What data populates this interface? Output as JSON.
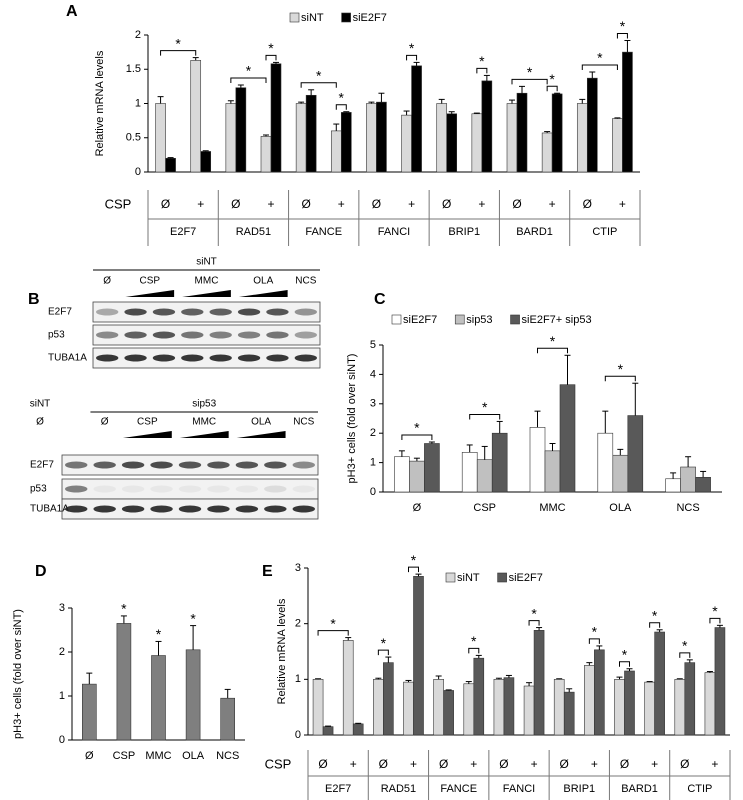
{
  "chart_data": [
    {
      "type": "bar",
      "panel": "A",
      "ylabel": "Relative mRNA levels",
      "row_label": "CSP",
      "categories": [
        "Ø",
        "+",
        "Ø",
        "+",
        "Ø",
        "+",
        "Ø",
        "+",
        "Ø",
        "+",
        "Ø",
        "+",
        "Ø",
        "+"
      ],
      "groups": [
        "E2F7",
        "RAD51",
        "FANCE",
        "FANCI",
        "BRIP1",
        "BARD1",
        "CTIP"
      ],
      "series": [
        {
          "name": "siNT",
          "color": "#d9d9d9",
          "values": [
            1.0,
            1.63,
            1.0,
            0.52,
            1.0,
            0.6,
            1.0,
            0.83,
            1.0,
            0.85,
            1.0,
            0.57,
            1.0,
            0.78
          ],
          "errors": [
            0.1,
            0.04,
            0.04,
            0.02,
            0.02,
            0.1,
            0.02,
            0.06,
            0.06,
            0.01,
            0.05,
            0.02,
            0.06,
            0.01
          ]
        },
        {
          "name": "siE2F7",
          "color": "#000000",
          "values": [
            0.2,
            0.3,
            1.23,
            1.58,
            1.12,
            0.87,
            1.02,
            1.55,
            0.85,
            1.33,
            1.15,
            1.14,
            1.37,
            1.75
          ],
          "errors": [
            0.01,
            0.01,
            0.04,
            0.02,
            0.08,
            0.01,
            0.13,
            0.05,
            0.03,
            0.08,
            0.1,
            0.01,
            0.09,
            0.17
          ]
        }
      ],
      "ylim": [
        0,
        2
      ],
      "yticks": [
        0,
        0.5,
        1,
        1.5,
        2
      ],
      "significance": [
        {
          "text": "*",
          "from": [
            0,
            0
          ],
          "to": [
            0,
            1
          ]
        },
        {
          "text": "*",
          "from": [
            0,
            2
          ],
          "to": [
            0,
            3
          ]
        },
        {
          "text": "*",
          "from": [
            0,
            3
          ],
          "to": [
            1,
            3
          ]
        },
        {
          "text": "*",
          "from": [
            0,
            4
          ],
          "to": [
            0,
            5
          ]
        },
        {
          "text": "*",
          "from": [
            0,
            5
          ],
          "to": [
            1,
            5
          ]
        },
        {
          "text": "*",
          "from": [
            0,
            7
          ],
          "to": [
            1,
            7
          ]
        },
        {
          "text": "*",
          "from": [
            0,
            9
          ],
          "to": [
            1,
            9
          ]
        },
        {
          "text": "*",
          "from": [
            0,
            10
          ],
          "to": [
            0,
            11
          ]
        },
        {
          "text": "*",
          "from": [
            0,
            11
          ],
          "to": [
            1,
            11
          ]
        },
        {
          "text": "*",
          "from": [
            0,
            12
          ],
          "to": [
            0,
            13
          ]
        },
        {
          "text": "*",
          "from": [
            0,
            13
          ],
          "to": [
            1,
            13
          ]
        }
      ]
    },
    {
      "type": "bar",
      "panel": "C",
      "ylabel": "pH3+ cells (fold over siNT)",
      "categories": [
        "Ø",
        "CSP",
        "MMC",
        "OLA",
        "NCS"
      ],
      "series": [
        {
          "name": "siE2F7",
          "color": "#ffffff",
          "values": [
            1.2,
            1.35,
            2.2,
            2.0,
            0.45
          ],
          "errors": [
            0.2,
            0.25,
            0.55,
            0.75,
            0.2
          ]
        },
        {
          "name": "sip53",
          "color": "#c0c0c0",
          "values": [
            1.05,
            1.1,
            1.4,
            1.25,
            0.85
          ],
          "errors": [
            0.1,
            0.45,
            0.25,
            0.2,
            0.35
          ]
        },
        {
          "name": "siE2F7+ sip53",
          "color": "#595959",
          "values": [
            1.65,
            2.0,
            3.65,
            2.6,
            0.5
          ],
          "errors": [
            0.05,
            0.4,
            1.0,
            1.1,
            0.2
          ]
        }
      ],
      "ylim": [
        0,
        5
      ],
      "yticks": [
        0,
        1,
        2,
        3,
        4,
        5
      ],
      "significance": [
        {
          "text": "*",
          "from": [
            0,
            0
          ],
          "to": [
            2,
            0
          ]
        },
        {
          "text": "*",
          "from": [
            0,
            1
          ],
          "to": [
            2,
            1
          ]
        },
        {
          "text": "*",
          "from": [
            0,
            2
          ],
          "to": [
            2,
            2
          ]
        },
        {
          "text": "*",
          "from": [
            0,
            3
          ],
          "to": [
            2,
            3
          ]
        }
      ]
    },
    {
      "type": "bar",
      "panel": "D",
      "ylabel": "pH3+ cells (fold over siNT)",
      "categories": [
        "Ø",
        "CSP",
        "MMC",
        "OLA",
        "NCS"
      ],
      "series": [
        {
          "color": "#7f7f7f",
          "values": [
            1.27,
            2.65,
            1.92,
            2.05,
            0.95
          ],
          "errors": [
            0.25,
            0.17,
            0.32,
            0.55,
            0.2
          ]
        }
      ],
      "ylim": [
        0,
        3
      ],
      "yticks": [
        0,
        1,
        2,
        3
      ],
      "significance": [
        {
          "text": "*",
          "from": [
            0,
            1
          ],
          "to": [
            0,
            1
          ]
        },
        {
          "text": "*",
          "from": [
            0,
            2
          ],
          "to": [
            0,
            2
          ]
        },
        {
          "text": "*",
          "from": [
            0,
            3
          ],
          "to": [
            0,
            3
          ]
        }
      ]
    },
    {
      "type": "bar",
      "panel": "E",
      "ylabel": "Relative mRNA levels",
      "row_label": "CSP",
      "categories": [
        "Ø",
        "+",
        "Ø",
        "+",
        "Ø",
        "+",
        "Ø",
        "+",
        "Ø",
        "+",
        "Ø",
        "+",
        "Ø",
        "+"
      ],
      "groups": [
        "E2F7",
        "RAD51",
        "FANCE",
        "FANCI",
        "BRIP1",
        "BARD1",
        "CTIP"
      ],
      "series": [
        {
          "name": "siNT",
          "color": "#d9d9d9",
          "values": [
            1.0,
            1.7,
            1.0,
            0.95,
            1.0,
            0.92,
            1.0,
            0.88,
            1.0,
            1.25,
            1.0,
            0.95,
            1.0,
            1.12
          ],
          "errors": [
            0.01,
            0.05,
            0.02,
            0.03,
            0.06,
            0.04,
            0.02,
            0.06,
            0.01,
            0.05,
            0.04,
            0.01,
            0.01,
            0.02
          ]
        },
        {
          "name": "siE2F7",
          "color": "#595959",
          "values": [
            0.15,
            0.2,
            1.3,
            2.85,
            0.8,
            1.38,
            1.03,
            1.88,
            0.77,
            1.53,
            1.15,
            1.85,
            1.3,
            1.93
          ],
          "errors": [
            0.01,
            0.01,
            0.1,
            0.04,
            0.01,
            0.05,
            0.04,
            0.05,
            0.06,
            0.07,
            0.04,
            0.04,
            0.05,
            0.04
          ]
        }
      ],
      "ylim": [
        0,
        3
      ],
      "yticks": [
        0,
        1,
        2,
        3
      ],
      "significance": [
        {
          "text": "*",
          "from": [
            0,
            0
          ],
          "to": [
            0,
            1
          ]
        },
        {
          "text": "*",
          "from": [
            0,
            2
          ],
          "to": [
            1,
            2
          ]
        },
        {
          "text": "*",
          "from": [
            0,
            3
          ],
          "to": [
            1,
            3
          ]
        },
        {
          "text": "*",
          "from": [
            0,
            5
          ],
          "to": [
            1,
            5
          ]
        },
        {
          "text": "*",
          "from": [
            0,
            7
          ],
          "to": [
            1,
            7
          ]
        },
        {
          "text": "*",
          "from": [
            0,
            9
          ],
          "to": [
            1,
            9
          ]
        },
        {
          "text": "*",
          "from": [
            0,
            10
          ],
          "to": [
            1,
            10
          ]
        },
        {
          "text": "*",
          "from": [
            0,
            11
          ],
          "to": [
            1,
            11
          ]
        },
        {
          "text": "*",
          "from": [
            0,
            12
          ],
          "to": [
            1,
            12
          ]
        },
        {
          "text": "*",
          "from": [
            0,
            13
          ],
          "to": [
            1,
            13
          ]
        }
      ]
    }
  ],
  "blot": {
    "panel": "B",
    "top": {
      "header": "siNT",
      "lanes": [
        "Ø",
        "CSP",
        "MMC",
        "OLA",
        "NCS"
      ],
      "rows": [
        "E2F7",
        "p53",
        "TUBA1A"
      ]
    },
    "bottom": {
      "headers": [
        "siNT",
        "sip53"
      ],
      "lanes": [
        "Ø",
        "Ø",
        "CSP",
        "MMC",
        "OLA",
        "NCS"
      ],
      "rows": [
        "E2F7",
        "p53",
        "TUBA1A"
      ]
    }
  }
}
